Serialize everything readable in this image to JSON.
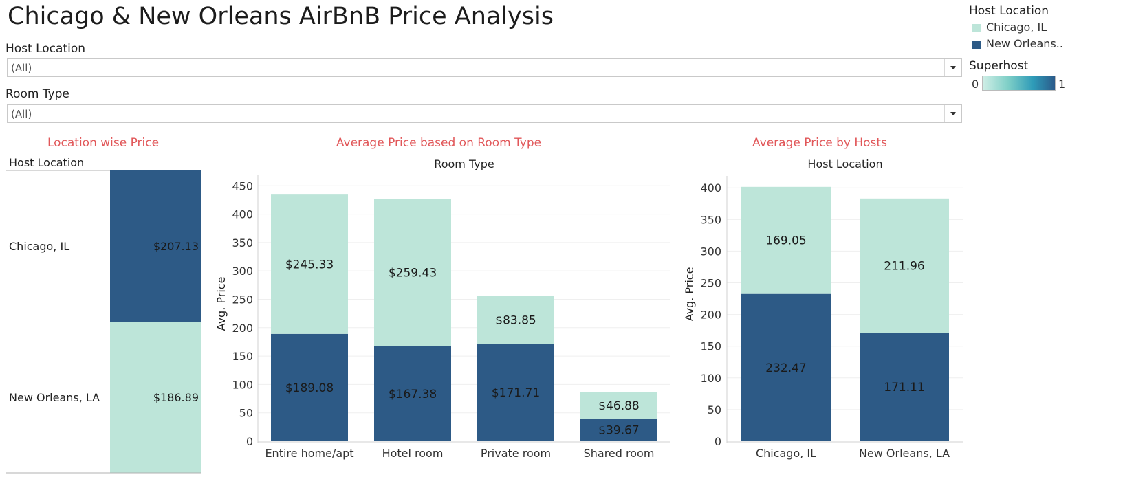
{
  "dashboard": {
    "title": "Chicago & New Orleans AirBnB Price Analysis"
  },
  "filters": {
    "host_location": {
      "label": "Host Location",
      "value": "(All)"
    },
    "room_type": {
      "label": "Room Type",
      "value": "(All)"
    }
  },
  "legend": {
    "color_title": "Host Location",
    "items": [
      {
        "label": "Chicago, IL",
        "color": "#bde5d9"
      },
      {
        "label": "New Orleans..",
        "color": "#2d5a86"
      }
    ],
    "gradient_title": "Superhost",
    "gradient_min": "0",
    "gradient_max": "1"
  },
  "colors": {
    "chicago": "#bde5d9",
    "new_orleans": "#2d5a86",
    "sheet_title": "#e15759"
  },
  "sheets": {
    "location": {
      "title": "Location wise Price",
      "header": "Host Location"
    },
    "room": {
      "title": "Average Price based on Room Type",
      "header": "Room Type",
      "ylabel": "Avg. Price"
    },
    "hosts": {
      "title": "Average Price by Hosts",
      "header": "Host Location",
      "ylabel": "Avg. Price"
    }
  },
  "chart_data": [
    {
      "type": "bar",
      "orientation": "horizontal",
      "title": "Location wise Price",
      "categories": [
        "Chicago, IL",
        "New Orleans, LA"
      ],
      "values": [
        207.13,
        186.89
      ],
      "labels": [
        "$207.13",
        "$186.89"
      ],
      "colors": [
        "#2d5a86",
        "#bde5d9"
      ]
    },
    {
      "type": "bar",
      "stacked": true,
      "title": "Average Price based on Room Type",
      "xlabel": "Room Type",
      "ylabel": "Avg. Price",
      "categories": [
        "Entire home/apt",
        "Hotel room",
        "Private room",
        "Shared room"
      ],
      "series": [
        {
          "values": [
            189.08,
            167.38,
            171.71,
            39.67
          ],
          "labels": [
            "$189.08",
            "$167.38",
            "$171.71",
            "$39.67"
          ],
          "color": "#2d5a86"
        },
        {
          "values": [
            245.33,
            259.43,
            83.85,
            46.88
          ],
          "labels": [
            "$245.33",
            "$259.43",
            "$83.85",
            "$46.88"
          ],
          "color": "#bde5d9"
        }
      ],
      "ylim": [
        0,
        460
      ],
      "yticks": [
        0,
        50,
        100,
        150,
        200,
        250,
        300,
        350,
        400,
        450
      ],
      "grid": true
    },
    {
      "type": "bar",
      "stacked": true,
      "title": "Average Price by Hosts",
      "xlabel": "Host Location",
      "ylabel": "Avg. Price",
      "categories": [
        "Chicago, IL",
        "New Orleans, LA"
      ],
      "series": [
        {
          "values": [
            232.47,
            171.11
          ],
          "labels": [
            "232.47",
            "171.11"
          ],
          "color": "#2d5a86"
        },
        {
          "values": [
            169.05,
            211.96
          ],
          "labels": [
            "169.05",
            "211.96"
          ],
          "color": "#bde5d9"
        }
      ],
      "ylim": [
        0,
        410
      ],
      "yticks": [
        0,
        50,
        100,
        150,
        200,
        250,
        300,
        350,
        400
      ],
      "grid": true
    }
  ]
}
